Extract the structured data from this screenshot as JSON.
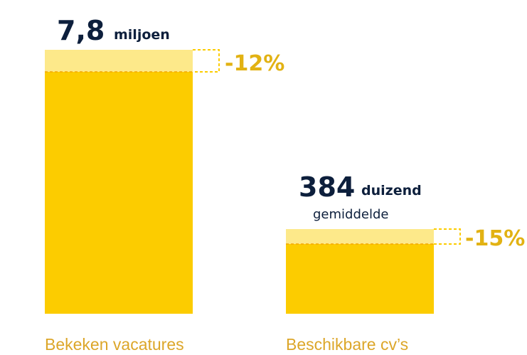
{
  "items": [
    {
      "value": "7,8",
      "unit": "miljoen",
      "change": "-12%",
      "label": "Bekeken vacatures"
    },
    {
      "value": "384",
      "unit": "duizend",
      "note": "gemiddelde",
      "change": "-15%",
      "label": "Beschikbare cv’s"
    }
  ]
}
